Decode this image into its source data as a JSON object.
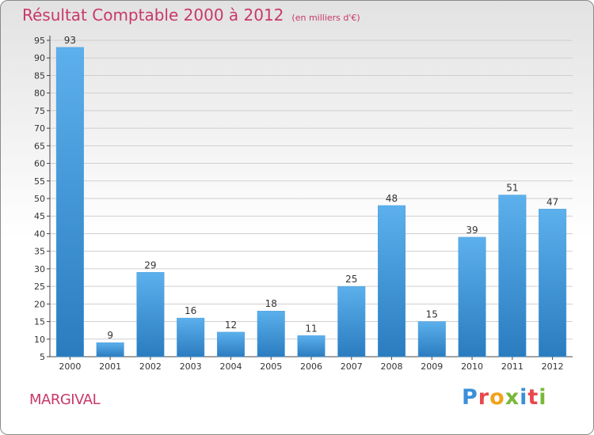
{
  "colors": {
    "bar_top": "#5cb0ec",
    "bar_bottom": "#2a7cbf",
    "title": "#c8386b",
    "axis_text": "#333333",
    "grid": "#cfcfcf"
  },
  "header": {
    "title": "Résultat Comptable 2000 à 2012",
    "subtitle": "(en milliers d'€)"
  },
  "footer": {
    "town": "MARGIVAL",
    "logo": [
      "P",
      "r",
      "o",
      "x",
      "i",
      "t",
      "i"
    ]
  },
  "chart_data": {
    "type": "bar",
    "title": "Résultat Comptable 2000 à 2012",
    "xlabel": "",
    "ylabel": "",
    "categories": [
      "2000",
      "2001",
      "2002",
      "2003",
      "2004",
      "2005",
      "2006",
      "2007",
      "2008",
      "2009",
      "2010",
      "2011",
      "2012"
    ],
    "values": [
      93,
      9,
      29,
      16,
      12,
      18,
      11,
      25,
      48,
      15,
      39,
      51,
      47
    ],
    "ylim": [
      5,
      95
    ],
    "yticks": [
      5,
      10,
      15,
      20,
      25,
      30,
      35,
      40,
      45,
      50,
      55,
      60,
      65,
      70,
      75,
      80,
      85,
      90,
      95
    ],
    "grid": true,
    "legend": "none"
  }
}
